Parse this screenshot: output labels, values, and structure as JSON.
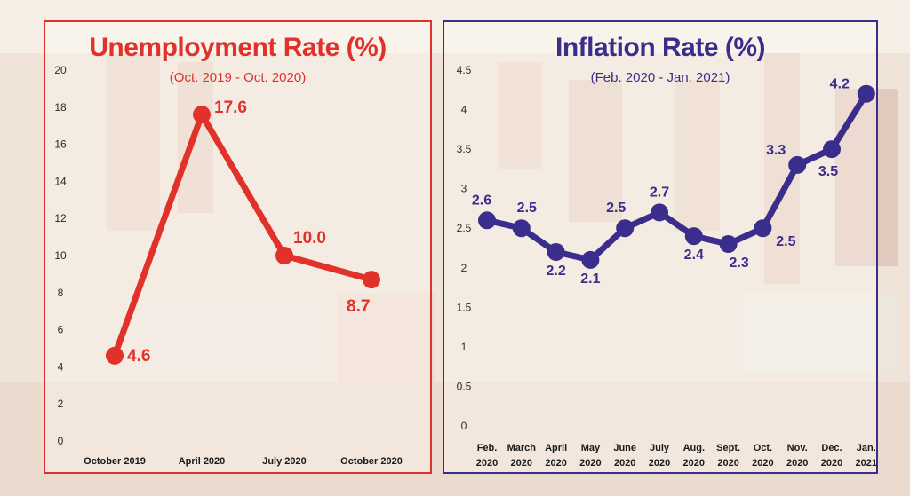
{
  "chart_data": [
    {
      "type": "line",
      "title": "Unemployment Rate (%)",
      "subtitle": "(Oct. 2019 - Oct. 2020)",
      "categories": [
        "October 2019",
        "April 2020",
        "July 2020",
        "October 2020"
      ],
      "values": [
        4.6,
        17.6,
        10.0,
        8.7
      ],
      "data_labels": [
        "4.6",
        "17.6",
        "10.0",
        "8.7"
      ],
      "ylim": [
        0,
        20
      ],
      "yticks": [
        0,
        2,
        4,
        6,
        8,
        10,
        12,
        14,
        16,
        18,
        20
      ],
      "grid": false,
      "color": "#e0322a"
    },
    {
      "type": "line",
      "title": "Inflation Rate (%)",
      "subtitle": "(Feb. 2020 - Jan. 2021)",
      "categories": [
        "Feb.|2020",
        "March|2020",
        "April|2020",
        "May|2020",
        "June|2020",
        "July|2020",
        "Aug.|2020",
        "Sept.|2020",
        "Oct.|2020",
        "Nov.|2020",
        "Dec.|2020",
        "Jan.|2021"
      ],
      "values": [
        2.6,
        2.5,
        2.2,
        2.1,
        2.5,
        2.7,
        2.4,
        2.3,
        2.5,
        3.3,
        3.5,
        4.2
      ],
      "data_labels": [
        "2.6",
        "2.5",
        "2.2",
        "2.1",
        "2.5",
        "2.7",
        "2.4",
        "2.3",
        "2.5",
        "3.3",
        "3.5",
        "4.2"
      ],
      "ylim": [
        0,
        4.5
      ],
      "yticks": [
        "0",
        "0.5",
        "1",
        "1.5",
        "2",
        "2.5",
        "3",
        "3.5",
        "4",
        "4.5"
      ],
      "grid": false,
      "color": "#3a2d8c"
    }
  ]
}
